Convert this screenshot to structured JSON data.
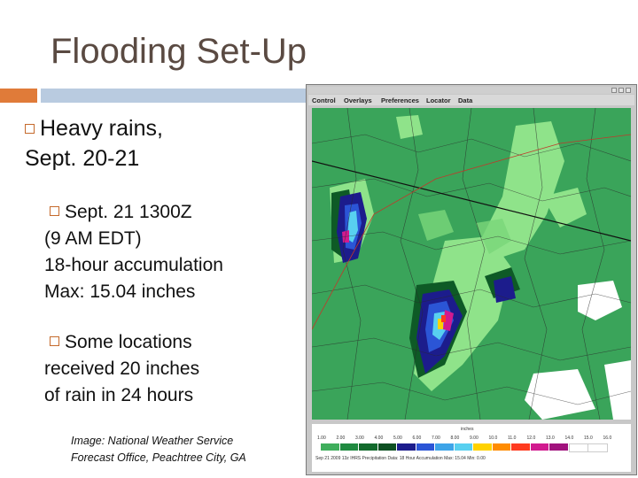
{
  "title": "Flooding Set-Up",
  "bullets": {
    "b1": [
      "Heavy rains,",
      "Sept. 20-21"
    ],
    "b2": [
      "Sept. 21 1300Z",
      "(9 AM EDT)",
      "18-hour accumulation",
      "Max: 15.04 inches"
    ],
    "b3": [
      "Some locations",
      "received 20 inches",
      "of rain in 24 hours"
    ]
  },
  "credit": [
    "Image: National Weather Service",
    "Forecast Office, Peachtree City, GA"
  ],
  "window": {
    "menus": [
      "Control",
      "Overlays",
      "Preferences",
      "Locator",
      "Data"
    ],
    "legend_units": "inches",
    "legend_values": [
      "1.00",
      "2.00",
      "3.00",
      "4.00",
      "5.00",
      "6.00",
      "7.00",
      "8.00",
      "9.00",
      "10.0",
      "11.0",
      "12.0",
      "13.0",
      "14.0",
      "15.0",
      "16.0"
    ],
    "legend_colors": [
      "#3fae5c",
      "#1f8a40",
      "#126a2c",
      "#0d4f22",
      "#1c1c8c",
      "#2b55d6",
      "#3da4e8",
      "#58d0f0",
      "#ffd200",
      "#ff8c00",
      "#ff3b1f",
      "#d11a8f",
      "#a1127d",
      "#ffffff",
      "#ffffff"
    ],
    "legend_caption": "Sep 21 2009 13z  IHRS Precipitation Data: 18 Hour Accumulation   Max: 15.04   Min: 0.00"
  }
}
